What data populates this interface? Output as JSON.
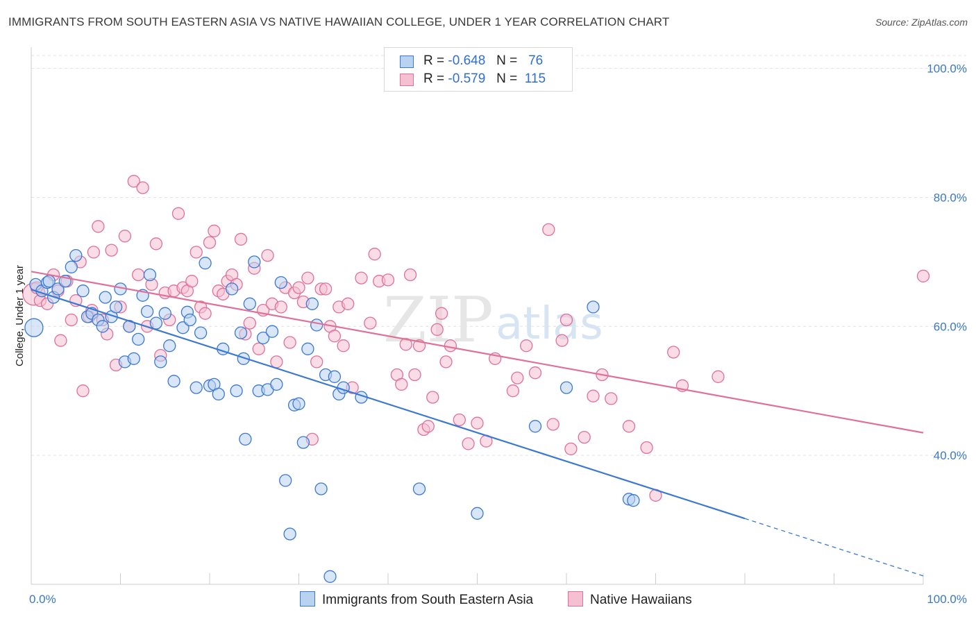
{
  "title": "IMMIGRANTS FROM SOUTH EASTERN ASIA VS NATIVE HAWAIIAN COLLEGE, UNDER 1 YEAR CORRELATION CHART",
  "source": "Source: ZipAtlas.com",
  "watermark": {
    "zip": "ZIP",
    "atlas": "atlas"
  },
  "legend": {
    "rows": [
      {
        "r_label": "R =",
        "r_value": "-0.648",
        "n_label": "N =",
        "n_value": "76"
      },
      {
        "r_label": "R =",
        "r_value": "-0.579",
        "n_label": "N =",
        "n_value": "115"
      }
    ]
  },
  "bottom_legend": {
    "series1": "Immigrants from South Eastern Asia",
    "series2": "Native Hawaiians"
  },
  "chart_data": {
    "type": "scatter",
    "title": "IMMIGRANTS FROM SOUTH EASTERN ASIA VS NATIVE HAWAIIAN COLLEGE, UNDER 1 YEAR CORRELATION CHART",
    "xlabel": "",
    "ylabel": "College, Under 1 year",
    "xlim": [
      0,
      100
    ],
    "ylim": [
      20,
      102
    ],
    "x_tick_labels": [
      "0.0%",
      "100.0%"
    ],
    "y_tick_labels": [
      "100.0%",
      "80.0%",
      "60.0%",
      "40.0%"
    ],
    "y_ticks": [
      100,
      80,
      60,
      40
    ],
    "grid": true,
    "legend_position": "top-center",
    "colors": {
      "series1": "#3a78d4",
      "series2": "#e07098",
      "fill1": "#b8d2f0",
      "fill2": "#f5c0d2",
      "tick": "#3a78c8"
    },
    "series": [
      {
        "name": "Immigrants from South Eastern Asia",
        "r": -0.648,
        "n": 76,
        "trend": {
          "x0": 0,
          "y0": 65.7,
          "x1": 80,
          "y1": 30.2,
          "dash_to_x": 100,
          "dash_to_y": 21.3
        },
        "points": [
          [
            0.3,
            59.8
          ],
          [
            0.5,
            66.5
          ],
          [
            1.2,
            65.5
          ],
          [
            1.8,
            66.8
          ],
          [
            2,
            67
          ],
          [
            2.5,
            64.5
          ],
          [
            3,
            65.8
          ],
          [
            3.8,
            67
          ],
          [
            4.5,
            69.2
          ],
          [
            5,
            71
          ],
          [
            5.8,
            65.5
          ],
          [
            6.3,
            61.5
          ],
          [
            6.8,
            62
          ],
          [
            7.5,
            61
          ],
          [
            8,
            60
          ],
          [
            8.3,
            64.5
          ],
          [
            9,
            61.5
          ],
          [
            9.5,
            63
          ],
          [
            10,
            65.8
          ],
          [
            10.5,
            54.5
          ],
          [
            11,
            60
          ],
          [
            11.5,
            55
          ],
          [
            12,
            58
          ],
          [
            12.5,
            64.8
          ],
          [
            13,
            62.3
          ],
          [
            13.3,
            68
          ],
          [
            14,
            60.5
          ],
          [
            14.5,
            54.5
          ],
          [
            15,
            62
          ],
          [
            15.5,
            57
          ],
          [
            16,
            51.5
          ],
          [
            17,
            59.8
          ],
          [
            17.5,
            62.2
          ],
          [
            17.8,
            61
          ],
          [
            18.5,
            50.5
          ],
          [
            19,
            59
          ],
          [
            19.5,
            69.8
          ],
          [
            20,
            50.8
          ],
          [
            20.5,
            51
          ],
          [
            21,
            49.5
          ],
          [
            21.5,
            56.5
          ],
          [
            22.5,
            65.8
          ],
          [
            23,
            50
          ],
          [
            23.5,
            59
          ],
          [
            23.8,
            55
          ],
          [
            24,
            42.5
          ],
          [
            24.5,
            63.5
          ],
          [
            25,
            70
          ],
          [
            25.5,
            50
          ],
          [
            26,
            58.2
          ],
          [
            26.5,
            50.2
          ],
          [
            27,
            59.2
          ],
          [
            27.5,
            51
          ],
          [
            28,
            66.8
          ],
          [
            28.5,
            36.1
          ],
          [
            29,
            27.8
          ],
          [
            29.5,
            47.8
          ],
          [
            30,
            48
          ],
          [
            30.5,
            42
          ],
          [
            31,
            56.5
          ],
          [
            31.5,
            63.5
          ],
          [
            32,
            60.2
          ],
          [
            32.5,
            34.8
          ],
          [
            33,
            52.5
          ],
          [
            33.5,
            21.2
          ],
          [
            34,
            52.2
          ],
          [
            34.5,
            49.5
          ],
          [
            35,
            50.5
          ],
          [
            37,
            49
          ],
          [
            43.5,
            34.8
          ],
          [
            50,
            31
          ],
          [
            56.5,
            44.5
          ],
          [
            60,
            50.5
          ],
          [
            63,
            63
          ],
          [
            67,
            33.2
          ],
          [
            67.5,
            33
          ]
        ]
      },
      {
        "name": "Native Hawaiians",
        "r": -0.579,
        "n": 115,
        "trend": {
          "x0": 0,
          "y0": 68.5,
          "x1": 100,
          "y1": 43.5
        },
        "points": [
          [
            0.3,
            65
          ],
          [
            0.6,
            66
          ],
          [
            1,
            64
          ],
          [
            1.8,
            63.5
          ],
          [
            2.5,
            68
          ],
          [
            3,
            65.5
          ],
          [
            3.3,
            57.8
          ],
          [
            4,
            67
          ],
          [
            4.5,
            61
          ],
          [
            5,
            64
          ],
          [
            5.5,
            70
          ],
          [
            5.8,
            50
          ],
          [
            6.5,
            61.5
          ],
          [
            6.8,
            62.5
          ],
          [
            7,
            71.5
          ],
          [
            7.5,
            75.5
          ],
          [
            8,
            61
          ],
          [
            8.5,
            58.8
          ],
          [
            9,
            71.8
          ],
          [
            9.5,
            54
          ],
          [
            10,
            63
          ],
          [
            10.5,
            74
          ],
          [
            11,
            60
          ],
          [
            11.5,
            82.5
          ],
          [
            12,
            68
          ],
          [
            12.5,
            81.5
          ],
          [
            13,
            60
          ],
          [
            13.5,
            66.5
          ],
          [
            14,
            72.8
          ],
          [
            14.5,
            55.5
          ],
          [
            15,
            65.2
          ],
          [
            15.5,
            61
          ],
          [
            16,
            65.5
          ],
          [
            16.5,
            77.5
          ],
          [
            17,
            66
          ],
          [
            17.5,
            65.5
          ],
          [
            18,
            67
          ],
          [
            18.5,
            71.5
          ],
          [
            19,
            63
          ],
          [
            19.5,
            62
          ],
          [
            20,
            73
          ],
          [
            20.5,
            74.8
          ],
          [
            21,
            65.5
          ],
          [
            21.5,
            65
          ],
          [
            22,
            67
          ],
          [
            22.5,
            68
          ],
          [
            23,
            66.5
          ],
          [
            23.5,
            73.5
          ],
          [
            24,
            58.8
          ],
          [
            24.5,
            60.5
          ],
          [
            25,
            69
          ],
          [
            25.5,
            56.5
          ],
          [
            26,
            62.5
          ],
          [
            26.5,
            71
          ],
          [
            27,
            63.5
          ],
          [
            27.5,
            54.5
          ],
          [
            28,
            63
          ],
          [
            28.5,
            66
          ],
          [
            29,
            57.5
          ],
          [
            29.5,
            65.2
          ],
          [
            30,
            66
          ],
          [
            30.5,
            63.8
          ],
          [
            31,
            67.5
          ],
          [
            31.5,
            42.5
          ],
          [
            32,
            54.5
          ],
          [
            32.5,
            65.8
          ],
          [
            33,
            65.8
          ],
          [
            33.5,
            60
          ],
          [
            34,
            58.5
          ],
          [
            34.5,
            63
          ],
          [
            35,
            57
          ],
          [
            35.5,
            63.5
          ],
          [
            36,
            50.5
          ],
          [
            37,
            67.5
          ],
          [
            38,
            60.5
          ],
          [
            38.5,
            71.2
          ],
          [
            39,
            67
          ],
          [
            40,
            67.2
          ],
          [
            41,
            52.5
          ],
          [
            41.5,
            51
          ],
          [
            42,
            57.2
          ],
          [
            42.5,
            68
          ],
          [
            43,
            52.5
          ],
          [
            43.5,
            57
          ],
          [
            44,
            44
          ],
          [
            44.5,
            44.5
          ],
          [
            45,
            49
          ],
          [
            45.5,
            59.5
          ],
          [
            46,
            62
          ],
          [
            46.5,
            54.5
          ],
          [
            47,
            57
          ],
          [
            48,
            45.5
          ],
          [
            49,
            41.8
          ],
          [
            50,
            45
          ],
          [
            51,
            42.2
          ],
          [
            52,
            55
          ],
          [
            54,
            50
          ],
          [
            54.5,
            52
          ],
          [
            55.5,
            57
          ],
          [
            56.5,
            52.8
          ],
          [
            58,
            75
          ],
          [
            58.5,
            44.8
          ],
          [
            59.5,
            57.8
          ],
          [
            60,
            61
          ],
          [
            60.5,
            41
          ],
          [
            62,
            42.8
          ],
          [
            63,
            49.2
          ],
          [
            64,
            52.5
          ],
          [
            65,
            48.8
          ],
          [
            67,
            44.5
          ],
          [
            69,
            41.2
          ],
          [
            70,
            33.8
          ],
          [
            72,
            56
          ],
          [
            73,
            50.8
          ],
          [
            77,
            52.2
          ],
          [
            100,
            67.8
          ]
        ]
      }
    ]
  }
}
